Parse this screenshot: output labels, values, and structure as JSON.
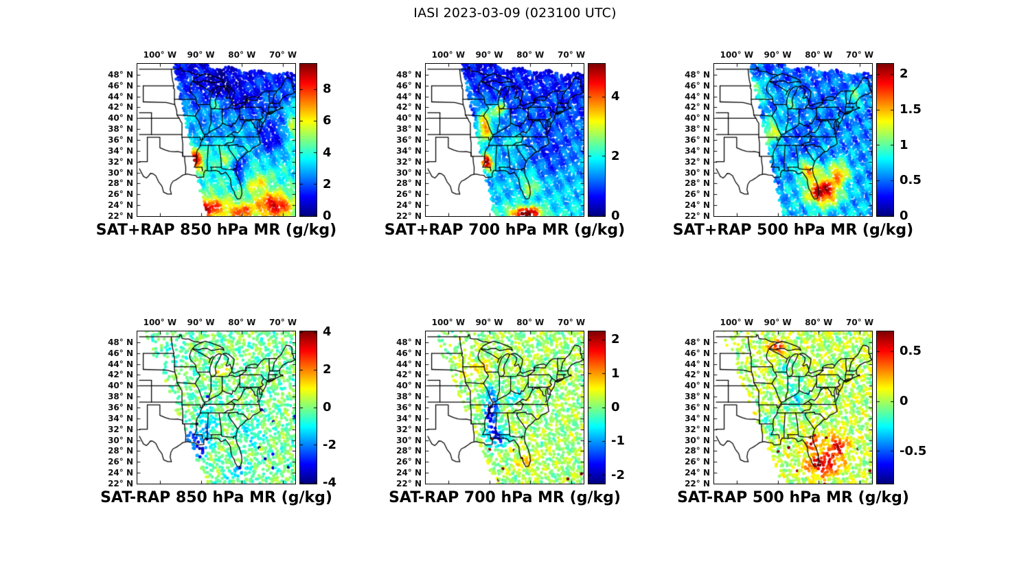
{
  "figure_title": "IASI 2023-03-09 (023100 UTC)",
  "axis": {
    "lon_tick_labels": [
      "100° W",
      "90° W",
      "80° W",
      "70° W"
    ],
    "lat_tick_labels": [
      "48° N",
      "46° N",
      "44° N",
      "42° N",
      "40° N",
      "38° N",
      "36° N",
      "34° N",
      "32° N",
      "30° N",
      "28° N",
      "26° N",
      "24° N",
      "22° N"
    ]
  },
  "panels": [
    {
      "row": 0,
      "col": 0,
      "title": "SAT+RAP 850 hPa MR (g/kg)",
      "colorbar": {
        "min": 0,
        "max": 9.6,
        "tick_values": [
          0,
          2,
          4,
          6,
          8
        ],
        "tick_labels": [
          "0",
          "2",
          "4",
          "6",
          "8"
        ],
        "units": "g/kg",
        "colormap": "jet"
      }
    },
    {
      "row": 0,
      "col": 1,
      "title": "SAT+RAP 700 hPa MR (g/kg)",
      "colorbar": {
        "min": 0,
        "max": 5.1,
        "tick_values": [
          0,
          2,
          4
        ],
        "tick_labels": [
          "0",
          "2",
          "4"
        ],
        "units": "g/kg",
        "colormap": "jet"
      }
    },
    {
      "row": 0,
      "col": 2,
      "title": "SAT+RAP 500 hPa MR (g/kg)",
      "colorbar": {
        "min": 0,
        "max": 2.15,
        "tick_values": [
          0,
          0.5,
          1,
          1.5,
          2
        ],
        "tick_labels": [
          "0",
          "0.5",
          "1",
          "1.5",
          "2"
        ],
        "units": "g/kg",
        "colormap": "jet"
      }
    },
    {
      "row": 1,
      "col": 0,
      "title": "SAT-RAP 850 hPa MR (g/kg)",
      "colorbar": {
        "min": -4.05,
        "max": 4.05,
        "tick_values": [
          -4,
          -2,
          0,
          2,
          4
        ],
        "tick_labels": [
          "-4",
          "-2",
          "0",
          "2",
          "4"
        ],
        "units": "g/kg",
        "colormap": "jet"
      }
    },
    {
      "row": 1,
      "col": 1,
      "title": "SAT-RAP 700 hPa MR (g/kg)",
      "colorbar": {
        "min": -2.25,
        "max": 2.25,
        "tick_values": [
          -2,
          -1,
          0,
          1,
          2
        ],
        "tick_labels": [
          "-2",
          "-1",
          "0",
          "1",
          "2"
        ],
        "units": "g/kg",
        "colormap": "jet"
      }
    },
    {
      "row": 1,
      "col": 2,
      "title": "SAT-RAP 500 hPa MR (g/kg)",
      "colorbar": {
        "min": -0.82,
        "max": 0.7,
        "tick_values": [
          -0.5,
          0,
          0.5
        ],
        "tick_labels": [
          "-0.5",
          "0",
          "0.5"
        ],
        "units": "g/kg",
        "colormap": "jet"
      }
    }
  ],
  "chart_data": [
    {
      "type": "scatter",
      "subtype": "geograph-swath-map",
      "title": "SAT+RAP 850 hPa MR (g/kg)",
      "variable": "850 hPa water vapor mixing ratio",
      "units": "g/kg",
      "colormap": "jet",
      "colorbar_range": [
        0,
        9.6
      ],
      "colorbar_ticks": [
        0,
        2,
        4,
        6,
        8
      ],
      "lon_range_deg_w": [
        105.5,
        67
      ],
      "lat_range_deg_n": [
        22,
        50
      ],
      "features": [
        "maximum 8-9.5 g/kg over Arkansas-Louisiana-Mississippi",
        "6-9 g/kg band along the Gulf coast and south of 27N",
        "1-3 g/kg (dark blue) over the Great Lakes and Northeast",
        "no retrievals west of the satellite swath edge over Texas and the high plains"
      ]
    },
    {
      "type": "scatter",
      "subtype": "geograph-swath-map",
      "title": "SAT+RAP 700 hPa MR (g/kg)",
      "variable": "700 hPa water vapor mixing ratio",
      "units": "g/kg",
      "colormap": "jet",
      "colorbar_range": [
        0,
        5.1
      ],
      "colorbar_ticks": [
        0,
        2,
        4
      ],
      "lon_range_deg_w": [
        105.5,
        67
      ],
      "lat_range_deg_n": [
        22,
        50
      ],
      "features": [
        "local maximum near 5 g/kg over Louisiana-Mississippi",
        "3-4 g/kg band from Missouri through Illinois",
        "mostly 0.5-2 g/kg elsewhere, driest over the northern plains and Northeast",
        "isolated 4-5 g/kg retrievals south of Florida"
      ]
    },
    {
      "type": "scatter",
      "subtype": "geograph-swath-map",
      "title": "SAT+RAP 500 hPa MR (g/kg)",
      "variable": "500 hPa water vapor mixing ratio",
      "units": "g/kg",
      "colormap": "jet",
      "colorbar_range": [
        0,
        2.15
      ],
      "colorbar_ticks": [
        0,
        0.5,
        1,
        1.5,
        2
      ],
      "lon_range_deg_w": [
        105.5,
        67
      ],
      "lat_range_deg_n": [
        22,
        50
      ],
      "features": [
        "1.5-2.1 g/kg over Florida and the southeastern Atlantic",
        "about 1-1.3 g/kg patch over Missouri",
        "0.3-0.8 g/kg over most northern areas"
      ]
    },
    {
      "type": "scatter",
      "subtype": "geograph-swath-map",
      "title": "SAT-RAP 850 hPa MR (g/kg)",
      "variable": "850 hPa mixing ratio difference (satellite minus RAP)",
      "units": "g/kg",
      "colormap": "jet",
      "colorbar_range": [
        -4.05,
        4.05
      ],
      "colorbar_ticks": [
        -4,
        -2,
        0,
        2,
        4
      ],
      "lon_range_deg_w": [
        105.5,
        67
      ],
      "lat_range_deg_n": [
        22,
        50
      ],
      "features": [
        "differences mostly within plus/minus 1 g/kg (green)",
        "-2 to -4 g/kg cluster over Louisiana and the central Gulf",
        "+1 to +2 g/kg patch over lower Michigan",
        "sparser sampling than the SAT+RAP panels"
      ]
    },
    {
      "type": "scatter",
      "subtype": "geograph-swath-map",
      "title": "SAT-RAP 700 hPa MR (g/kg)",
      "variable": "700 hPa mixing ratio difference (satellite minus RAP)",
      "units": "g/kg",
      "colormap": "jet",
      "colorbar_range": [
        -2.25,
        2.25
      ],
      "colorbar_ticks": [
        -2,
        -1,
        0,
        1,
        2
      ],
      "lon_range_deg_w": [
        105.5,
        67
      ],
      "lat_range_deg_n": [
        22,
        50
      ],
      "features": [
        "-1.5 to -2.2 g/kg along the lower Mississippi valley",
        "mostly plus/minus 0.5 g/kg elsewhere",
        "scattered +1.5 to +2 g/kg retrievals near the Gulf and Florida"
      ]
    },
    {
      "type": "scatter",
      "subtype": "geograph-swath-map",
      "title": "SAT-RAP 500 hPa MR (g/kg)",
      "variable": "500 hPa mixing ratio difference (satellite minus RAP)",
      "units": "g/kg",
      "colormap": "jet",
      "colorbar_range": [
        -0.82,
        0.7
      ],
      "colorbar_ticks": [
        -0.5,
        0,
        0.5
      ],
      "lon_range_deg_w": [
        105.5,
        67
      ],
      "lat_range_deg_n": [
        22,
        50
      ],
      "features": [
        "+0.4 to +0.7 g/kg cluster over Florida and the southeast Atlantic",
        "small +0.4 g/kg patch near Lake Superior",
        "mostly -0.2 to +0.2 g/kg elsewhere"
      ]
    }
  ]
}
